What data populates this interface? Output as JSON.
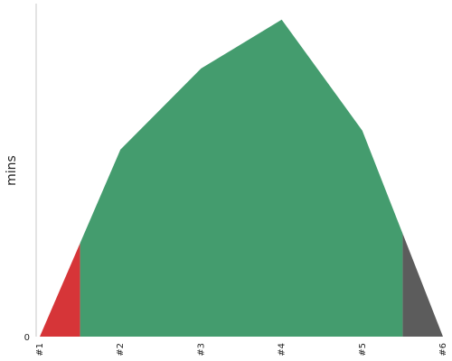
{
  "chart_data": {
    "type": "area",
    "ylabel": "mins",
    "x": [
      "#1",
      "#2",
      "#3",
      "#4",
      "#5",
      "#6"
    ],
    "x_values": [
      1,
      2,
      3,
      4,
      5,
      6
    ],
    "values": [
      0,
      226,
      324,
      383,
      249,
      0
    ],
    "ylim": [
      0,
      385
    ],
    "y_ticks": [
      {
        "value": 0,
        "label": "0"
      }
    ],
    "grid": false,
    "segments": [
      {
        "x_from": 1,
        "x_to": 1.5,
        "color": "#d63538"
      },
      {
        "x_from": 1.5,
        "x_to": 5.5,
        "color": "#449c6e"
      },
      {
        "x_from": 5.5,
        "x_to": 6,
        "color": "#5c5c5c"
      }
    ]
  }
}
